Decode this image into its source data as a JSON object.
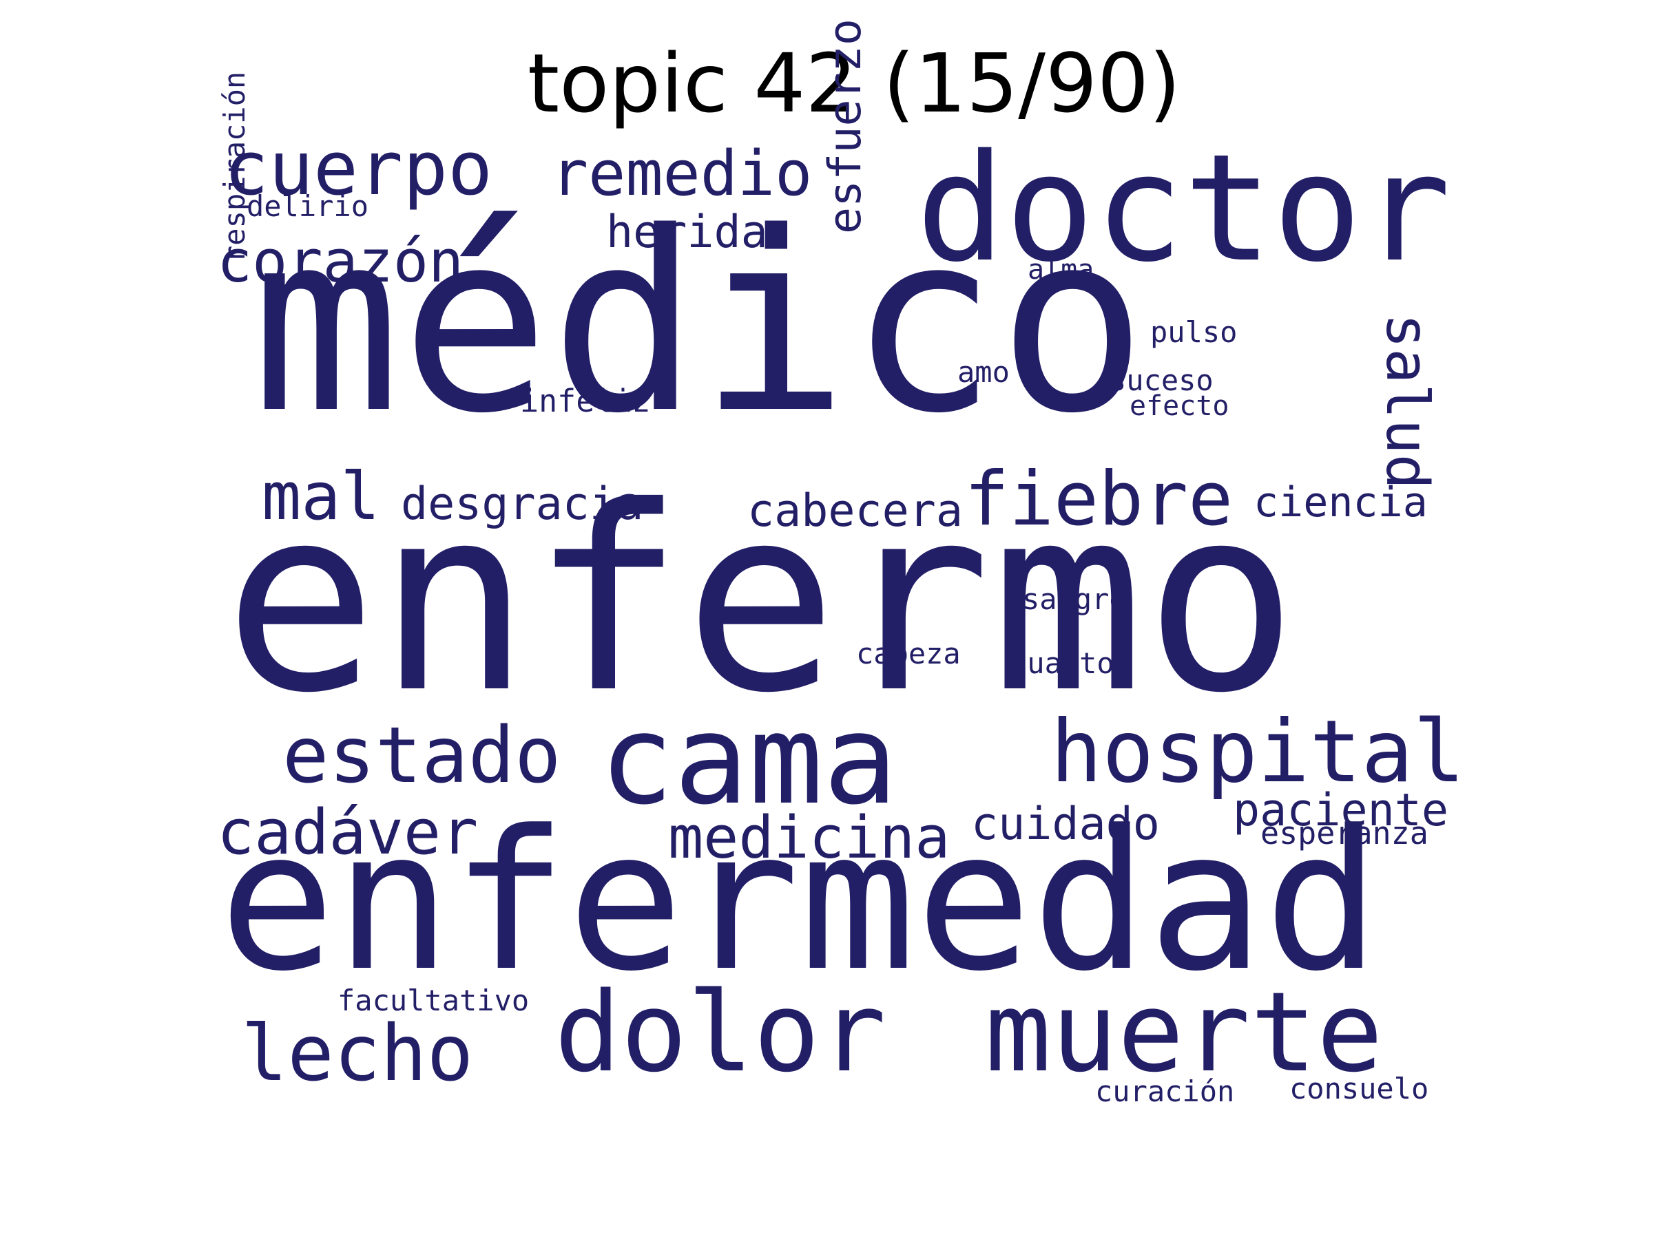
{
  "title": "topic 42 (15/90)",
  "colors": {
    "words": "#231f67",
    "background": "#ffffff",
    "title": "#000000"
  },
  "words": [
    {
      "text": "enfermo"
    },
    {
      "text": "médico"
    },
    {
      "text": "enfermedad"
    },
    {
      "text": "doctor"
    },
    {
      "text": "cama"
    },
    {
      "text": "muerte"
    },
    {
      "text": "dolor"
    },
    {
      "text": "hospital"
    },
    {
      "text": "cuerpo"
    },
    {
      "text": "estado"
    },
    {
      "text": "fiebre"
    },
    {
      "text": "lecho"
    },
    {
      "text": "remedio"
    },
    {
      "text": "cadáver"
    },
    {
      "text": "corazón"
    },
    {
      "text": "medicina"
    },
    {
      "text": "mal"
    },
    {
      "text": "salud"
    },
    {
      "text": "esfuerzo"
    },
    {
      "text": "desgracia"
    },
    {
      "text": "paciente"
    },
    {
      "text": "cuidado"
    },
    {
      "text": "herida"
    },
    {
      "text": "cabecera"
    },
    {
      "text": "ciencia"
    },
    {
      "text": "esperanza"
    },
    {
      "text": "respiración"
    },
    {
      "text": "infeliz"
    },
    {
      "text": "delirio"
    },
    {
      "text": "facultativo"
    },
    {
      "text": "curación"
    },
    {
      "text": "consuelo"
    },
    {
      "text": "sangre"
    },
    {
      "text": "cuarto"
    },
    {
      "text": "cabeza"
    },
    {
      "text": "pulso"
    },
    {
      "text": "suceso"
    },
    {
      "text": "efecto"
    },
    {
      "text": "alma"
    },
    {
      "text": "amo"
    }
  ]
}
